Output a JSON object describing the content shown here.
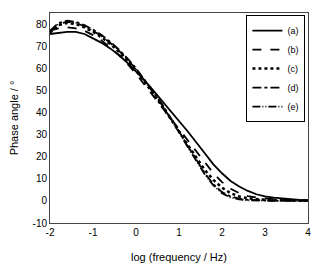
{
  "chart_data": {
    "type": "line",
    "xlabel": "log (frequency / Hz)",
    "ylabel": "Phase angle / °",
    "xlim": [
      -2,
      4
    ],
    "ylim": [
      -10,
      85
    ],
    "xticks": [
      -2,
      -1,
      0,
      1,
      2,
      3,
      4
    ],
    "yticks": [
      -10,
      0,
      10,
      20,
      30,
      40,
      50,
      60,
      70,
      80
    ],
    "grid": false,
    "legend": "upper right",
    "x": [
      -2.0,
      -1.8,
      -1.6,
      -1.4,
      -1.2,
      -1.0,
      -0.8,
      -0.6,
      -0.4,
      -0.2,
      0.0,
      0.2,
      0.4,
      0.6,
      0.8,
      1.0,
      1.2,
      1.4,
      1.6,
      1.8,
      2.0,
      2.2,
      2.4,
      2.6,
      2.8,
      3.0,
      3.2,
      3.4,
      3.6,
      3.8,
      4.0
    ],
    "series": [
      {
        "name": "(a)",
        "color": "#000000",
        "line_style": "solid",
        "values": [
          75.5,
          76.0,
          76.5,
          76.5,
          75.5,
          73.5,
          71.5,
          69.0,
          66.0,
          62.5,
          58.5,
          54.5,
          50.0,
          45.5,
          41.0,
          36.5,
          31.5,
          26.5,
          21.5,
          16.5,
          12.5,
          9.0,
          6.5,
          4.5,
          3.0,
          2.0,
          1.5,
          1.0,
          0.8,
          0.5,
          0.3
        ]
      },
      {
        "name": "(b)",
        "color": "#000000",
        "line_style": "dashed",
        "values": [
          77.0,
          78.0,
          78.5,
          78.0,
          77.0,
          75.0,
          72.5,
          69.5,
          66.0,
          62.0,
          57.5,
          52.5,
          47.5,
          42.5,
          37.5,
          32.5,
          27.5,
          22.0,
          17.0,
          12.5,
          8.5,
          5.5,
          3.5,
          2.2,
          1.5,
          1.0,
          0.8,
          0.5,
          0.4,
          0.3,
          0.2
        ]
      },
      {
        "name": "(c)",
        "color": "#000000",
        "line_style": "dotted",
        "values": [
          76.0,
          79.5,
          80.5,
          80.0,
          78.5,
          76.5,
          74.0,
          71.0,
          67.5,
          63.5,
          59.0,
          54.0,
          48.5,
          43.0,
          37.5,
          31.5,
          25.5,
          19.5,
          14.0,
          9.5,
          6.0,
          3.5,
          2.0,
          1.2,
          0.8,
          0.5,
          0.4,
          0.3,
          0.2,
          0.2,
          0.1
        ]
      },
      {
        "name": "(d)",
        "color": "#000000",
        "line_style": "dashdot",
        "values": [
          77.0,
          80.5,
          81.5,
          81.0,
          79.5,
          77.5,
          75.0,
          72.0,
          68.5,
          64.5,
          60.0,
          55.0,
          49.5,
          44.0,
          38.0,
          31.5,
          25.0,
          18.5,
          12.5,
          7.5,
          4.0,
          2.0,
          1.0,
          0.5,
          0.3,
          0.2,
          0.1,
          0.1,
          0.0,
          0.0,
          0.0
        ]
      },
      {
        "name": "(e)",
        "color": "#000000",
        "line_style": "dashdotdot",
        "values": [
          76.5,
          80.0,
          81.0,
          80.5,
          79.0,
          77.0,
          74.5,
          71.5,
          68.0,
          64.0,
          59.5,
          54.5,
          49.0,
          43.5,
          37.5,
          31.0,
          24.5,
          18.0,
          12.0,
          7.0,
          3.5,
          1.5,
          0.7,
          0.3,
          0.1,
          0.0,
          0.0,
          0.0,
          0.0,
          0.0,
          0.0
        ]
      }
    ]
  }
}
